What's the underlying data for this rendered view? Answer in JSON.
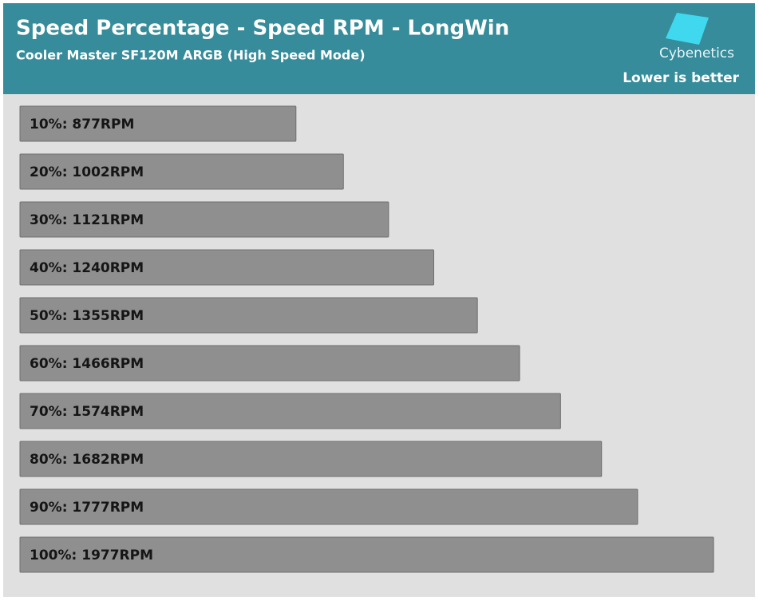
{
  "chart_data": {
    "type": "bar",
    "orientation": "horizontal",
    "title": "Speed Percentage - Speed RPM - LongWin",
    "subtitle": "Cooler Master SF120M ARGB (High Speed Mode)",
    "brand": "Cybenetics",
    "annotation": "Lower is better",
    "values": [
      877,
      1002,
      1121,
      1240,
      1355,
      1466,
      1574,
      1682,
      1777,
      1977
    ],
    "value_labels": [
      "10%: 877RPM",
      "20%: 1002RPM",
      "30%: 1121RPM",
      "40%: 1240RPM",
      "50%: 1355RPM",
      "60%: 1466RPM",
      "70%: 1574RPM",
      "80%: 1682RPM",
      "90%: 1777RPM",
      "100%: 1977RPM"
    ],
    "color": "#8f8f8f",
    "xlim": [
      150,
      2000
    ]
  }
}
